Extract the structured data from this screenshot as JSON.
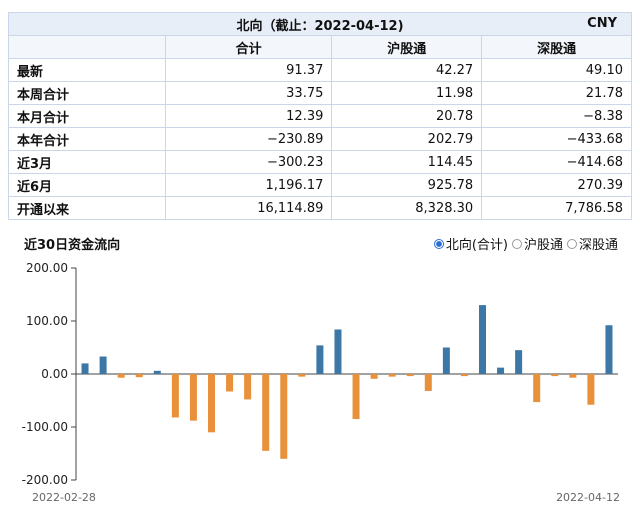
{
  "table": {
    "title": "北向（截止：2022-04-12)",
    "currency": "CNY",
    "columns": [
      "",
      "合计",
      "沪股通",
      "深股通"
    ],
    "rows": [
      {
        "label": "最新",
        "values": [
          "91.37",
          "42.27",
          "49.10"
        ]
      },
      {
        "label": "本周合计",
        "values": [
          "33.75",
          "11.98",
          "21.78"
        ]
      },
      {
        "label": "本月合计",
        "values": [
          "12.39",
          "20.78",
          "−8.38"
        ]
      },
      {
        "label": "本年合计",
        "values": [
          "−230.89",
          "202.79",
          "−433.68"
        ]
      },
      {
        "label": "近3月",
        "values": [
          "−300.23",
          "114.45",
          "−414.68"
        ]
      },
      {
        "label": "近6月",
        "values": [
          "1,196.17",
          "925.78",
          "270.39"
        ]
      },
      {
        "label": "开通以来",
        "values": [
          "16,114.89",
          "8,328.30",
          "7,786.58"
        ]
      }
    ]
  },
  "chart": {
    "title": "近30日资金流向",
    "legend": [
      {
        "label": "北向(合计)",
        "selected": true
      },
      {
        "label": "沪股通",
        "selected": false
      },
      {
        "label": "深股通",
        "selected": false
      }
    ]
  },
  "colors": {
    "positive": "#3d77a6",
    "negative": "#e8913a",
    "axis": "#444444",
    "grid": "#e2e2e2"
  },
  "chart_data": {
    "type": "bar",
    "x_start_label": "2022-02-28",
    "x_end_label": "2022-04-12",
    "values": [
      20,
      33,
      -7,
      -6,
      6,
      -82,
      -88,
      -110,
      -33,
      -48,
      -145,
      -160,
      -5,
      54,
      84,
      -85,
      -9,
      -5,
      -4,
      -32,
      50,
      -4,
      130,
      12,
      45,
      -53,
      -4,
      -7,
      -58,
      92
    ],
    "ylim": [
      -200,
      200
    ],
    "yticks": [
      "200.00",
      "100.00",
      "0.00",
      "-100.00",
      "-200.00"
    ],
    "grid": false
  }
}
